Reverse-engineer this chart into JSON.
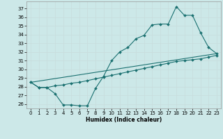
{
  "xlabel": "Humidex (Indice chaleur)",
  "xlim": [
    -0.5,
    23.5
  ],
  "ylim": [
    25.5,
    37.8
  ],
  "xticks": [
    0,
    1,
    2,
    3,
    4,
    5,
    6,
    7,
    8,
    9,
    10,
    11,
    12,
    13,
    14,
    15,
    16,
    17,
    18,
    19,
    20,
    21,
    22,
    23
  ],
  "yticks": [
    26,
    27,
    28,
    29,
    30,
    31,
    32,
    33,
    34,
    35,
    36,
    37
  ],
  "bg_color": "#cce8e8",
  "grid_color": "#c8dede",
  "line_color": "#1a7070",
  "line1_x": [
    0,
    1,
    2,
    3,
    4,
    5,
    6,
    7,
    8,
    9,
    10,
    11,
    12,
    13,
    14,
    15,
    16,
    17,
    18,
    19,
    20,
    21,
    22,
    23
  ],
  "line1_y": [
    28.5,
    27.9,
    27.9,
    27.2,
    25.9,
    25.9,
    25.8,
    25.8,
    27.8,
    29.2,
    31.0,
    32.0,
    32.5,
    33.5,
    33.9,
    35.1,
    35.2,
    35.2,
    37.2,
    36.2,
    36.2,
    34.2,
    32.5,
    31.8
  ],
  "line2_x": [
    0,
    23
  ],
  "line2_y": [
    28.5,
    31.8
  ],
  "line3_x": [
    0,
    1,
    2,
    3,
    4,
    5,
    6,
    7,
    8,
    9,
    10,
    11,
    12,
    13,
    14,
    15,
    16,
    17,
    18,
    19,
    20,
    21,
    22,
    23
  ],
  "line3_y": [
    28.5,
    27.9,
    27.9,
    28.1,
    28.2,
    28.4,
    28.5,
    28.7,
    28.9,
    29.1,
    29.3,
    29.5,
    29.7,
    29.9,
    30.1,
    30.3,
    30.5,
    30.7,
    30.9,
    31.0,
    31.1,
    31.2,
    31.4,
    31.6
  ]
}
